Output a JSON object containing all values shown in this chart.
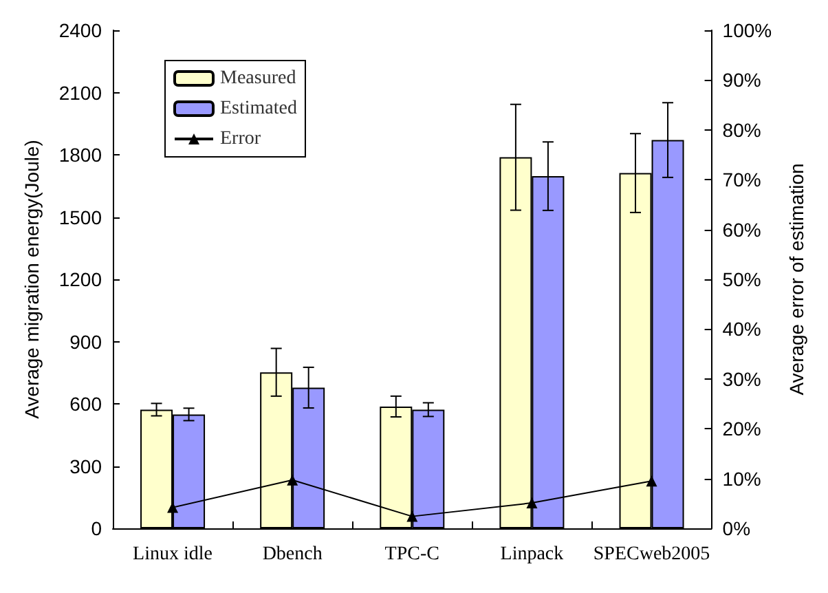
{
  "chart_data": {
    "type": "bar",
    "ylabel": "Average migration energy(Joule)",
    "y2label": "Average error of estimation",
    "categories": [
      "Linux idle",
      "Dbench",
      "TPC-C",
      "Linpack",
      "SPECweb2005"
    ],
    "series": [
      {
        "name": "Measured",
        "color": "#ffffcc",
        "values": [
          572,
          752,
          587,
          1788,
          1712
        ],
        "errors": [
          30,
          115,
          50,
          255,
          190
        ]
      },
      {
        "name": "Estimated",
        "color": "#9999ff",
        "values": [
          549,
          678,
          572,
          1697,
          1871
        ],
        "errors": [
          30,
          98,
          33,
          165,
          180
        ]
      },
      {
        "name": "Error",
        "type": "line",
        "axis": "y2",
        "color": "#000000",
        "marker": "triangle",
        "line_style": "solid",
        "values": [
          4.2,
          9.7,
          2.4,
          5.1,
          9.5
        ]
      }
    ],
    "ylim": [
      0,
      2400
    ],
    "yticks": [
      0,
      300,
      600,
      900,
      1200,
      1500,
      1800,
      2100,
      2400
    ],
    "y2lim": [
      0,
      100
    ],
    "y2ticks": [
      {
        "value": 0,
        "label": "0%"
      },
      {
        "value": 10,
        "label": "10%"
      },
      {
        "value": 20,
        "label": "20%"
      },
      {
        "value": 30,
        "label": "30%"
      },
      {
        "value": 40,
        "label": "40%"
      },
      {
        "value": 50,
        "label": "50%"
      },
      {
        "value": 60,
        "label": "60%"
      },
      {
        "value": 70,
        "label": "70%"
      },
      {
        "value": 80,
        "label": "80%"
      },
      {
        "value": 90,
        "label": "90%"
      },
      {
        "value": 100,
        "label": "100%"
      }
    ],
    "grid": false,
    "legend": "top left"
  }
}
